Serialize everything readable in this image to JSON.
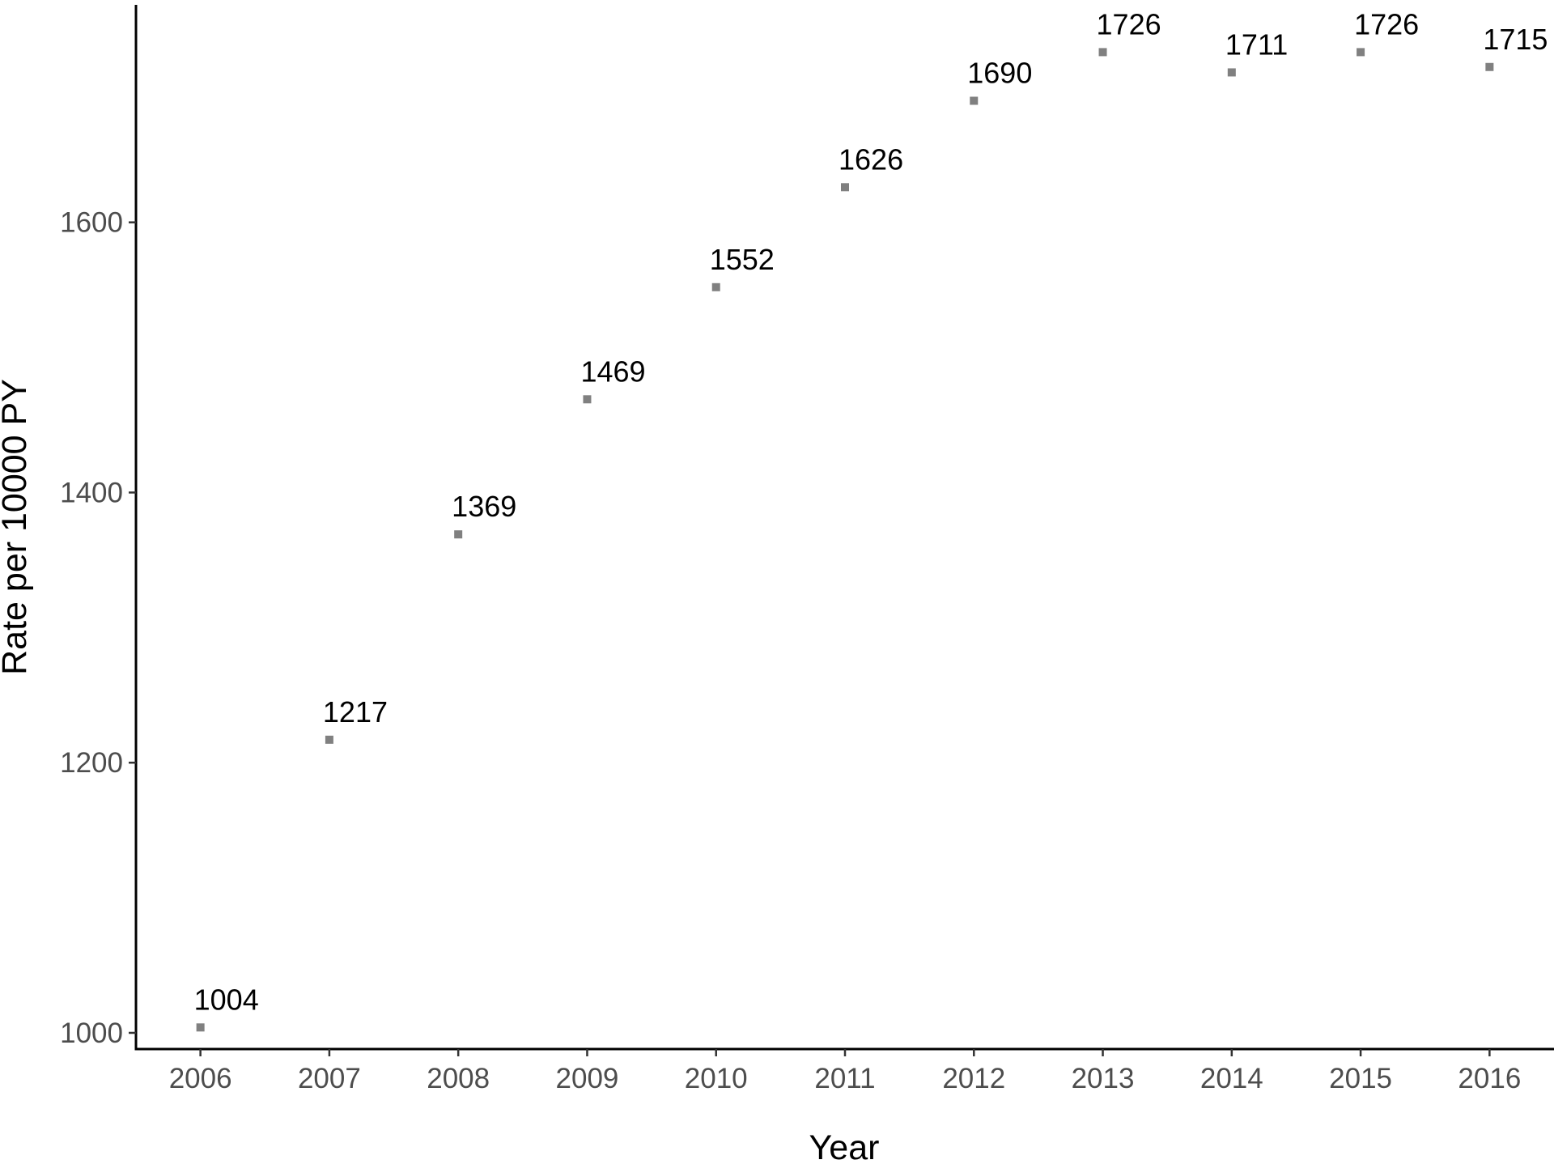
{
  "chart_data": {
    "type": "scatter",
    "x_label": "Year",
    "y_label": "Rate per 10000 PY",
    "x": [
      2006,
      2007,
      2008,
      2009,
      2010,
      2011,
      2012,
      2013,
      2014,
      2015,
      2016
    ],
    "values": [
      1004,
      1217,
      1369,
      1469,
      1552,
      1626,
      1690,
      1726,
      1711,
      1726,
      1715
    ],
    "color": "#808080",
    "xlim": [
      2005.5,
      2016.5
    ],
    "xticks": [
      2006,
      2007,
      2008,
      2009,
      2010,
      2011,
      2012,
      2013,
      2014,
      2015,
      2016
    ],
    "ylim": [
      988,
      1761
    ],
    "yticks": [
      1000,
      1200,
      1400,
      1600
    ],
    "grid": false
  }
}
